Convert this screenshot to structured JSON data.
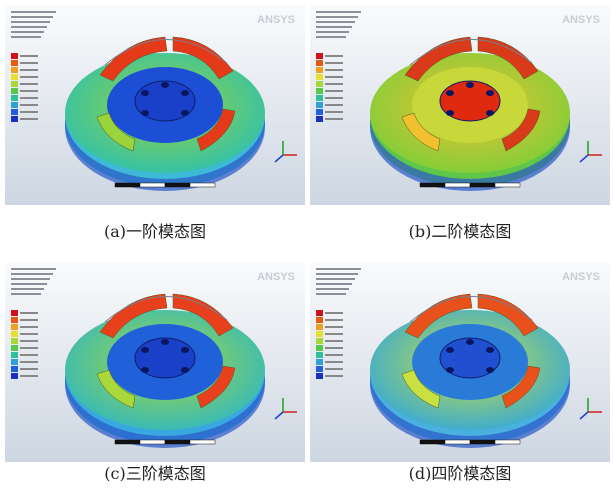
{
  "panels": [
    {
      "logo": "ANSYS",
      "caption": "(a)一阶模态图"
    },
    {
      "logo": "ANSYS",
      "caption": "(b)二阶模态图"
    },
    {
      "logo": "ANSYS",
      "caption": "(c)三阶模态图"
    },
    {
      "logo": "ANSYS",
      "caption": "(d)四阶模态图"
    }
  ]
}
